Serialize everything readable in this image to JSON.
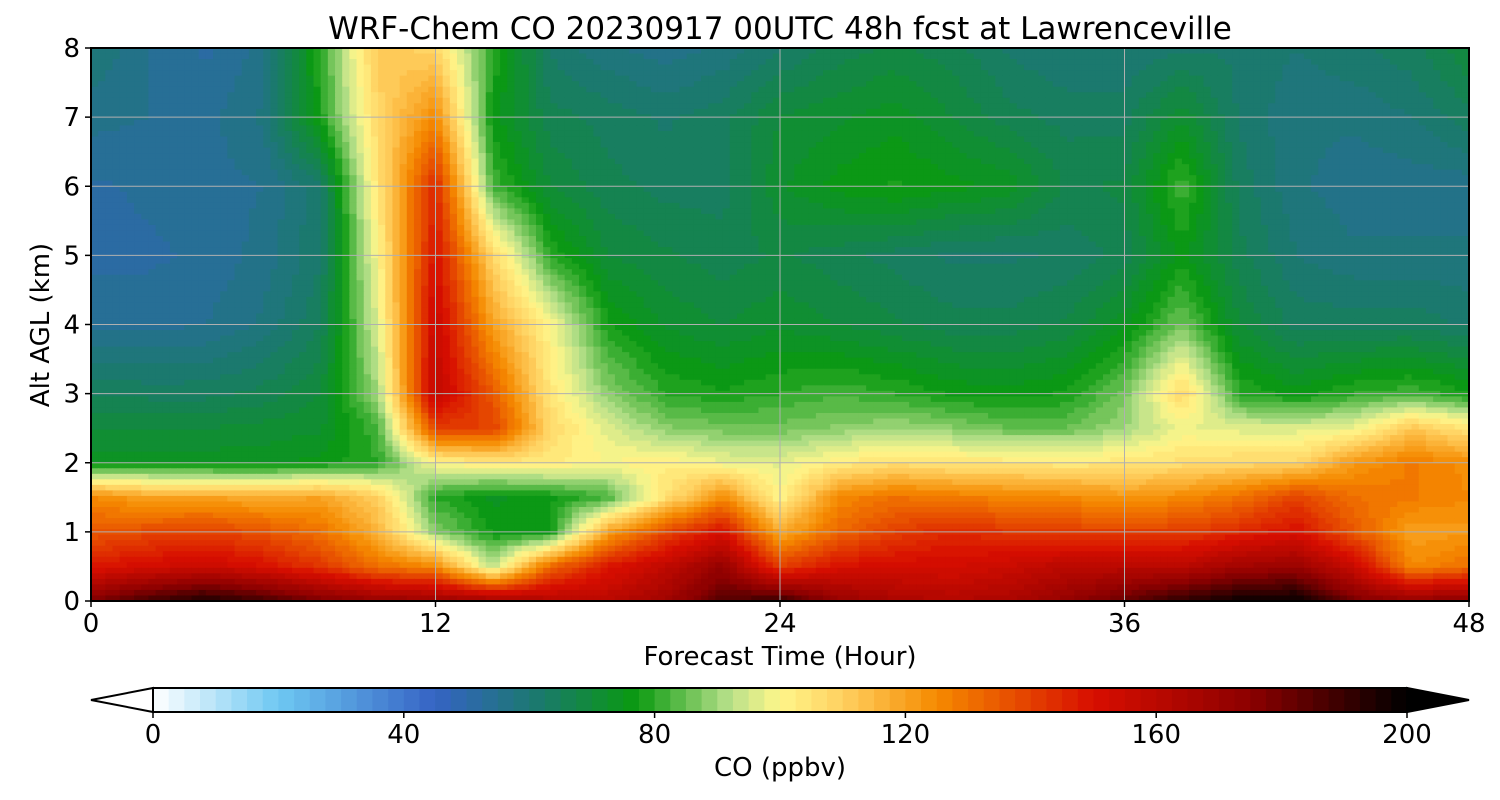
{
  "chart_data": {
    "type": "heatmap",
    "title": "WRF-Chem CO  20230917 00UTC 48h fcst at Lawrenceville",
    "xlabel": "Forecast Time (Hour)",
    "ylabel": "Alt AGL (km)",
    "xlim": [
      0,
      48
    ],
    "ylim": [
      0,
      8
    ],
    "x_ticks": [
      "0",
      "12",
      "24",
      "36",
      "48"
    ],
    "y_ticks": [
      "0",
      "1",
      "2",
      "3",
      "4",
      "5",
      "6",
      "7",
      "8"
    ],
    "grid": true,
    "colorbar": {
      "label": "CO  (ppbv)",
      "range": [
        0,
        200
      ],
      "ticks": [
        "0",
        "40",
        "80",
        "120",
        "160",
        "200"
      ],
      "extend": "both",
      "placement": "bottom",
      "stops": [
        {
          "value": 0,
          "color": "#ffffff"
        },
        {
          "value": 20,
          "color": "#6ec8f2"
        },
        {
          "value": 45,
          "color": "#3563c4"
        },
        {
          "value": 62,
          "color": "#1a7a6a"
        },
        {
          "value": 77,
          "color": "#0a9a10"
        },
        {
          "value": 92,
          "color": "#b8e08a"
        },
        {
          "value": 100,
          "color": "#fff68a"
        },
        {
          "value": 110,
          "color": "#ffd060"
        },
        {
          "value": 125,
          "color": "#f58a00"
        },
        {
          "value": 150,
          "color": "#d80e00"
        },
        {
          "value": 175,
          "color": "#8c0000"
        },
        {
          "value": 200,
          "color": "#000000"
        }
      ]
    },
    "hours": [
      0,
      2,
      4,
      6,
      8,
      10,
      12,
      14,
      16,
      18,
      20,
      22,
      24,
      26,
      28,
      30,
      32,
      34,
      36,
      38,
      40,
      42,
      44,
      46,
      48
    ],
    "altitudes_km": [
      0,
      0.5,
      1,
      1.5,
      2,
      2.5,
      3,
      4,
      5,
      6,
      7,
      8
    ],
    "values_ppbv": [
      [
        178,
        188,
        195,
        188,
        178,
        172,
        170,
        168,
        162,
        160,
        168,
        185,
        190,
        172,
        165,
        162,
        165,
        172,
        182,
        192,
        198,
        200,
        178,
        172,
        176
      ],
      [
        148,
        152,
        155,
        150,
        142,
        130,
        125,
        92,
        132,
        148,
        158,
        172,
        140,
        150,
        152,
        152,
        155,
        160,
        160,
        160,
        168,
        170,
        155,
        125,
        130
      ],
      [
        135,
        138,
        140,
        136,
        130,
        116,
        88,
        77,
        77,
        120,
        138,
        150,
        118,
        132,
        140,
        145,
        142,
        140,
        140,
        140,
        145,
        150,
        135,
        120,
        122
      ],
      [
        125,
        120,
        120,
        118,
        120,
        110,
        80,
        74,
        77,
        82,
        105,
        125,
        100,
        125,
        130,
        128,
        126,
        125,
        122,
        125,
        130,
        140,
        130,
        128,
        125
      ],
      [
        74,
        74,
        74,
        74,
        76,
        80,
        100,
        104,
        103,
        100,
        102,
        98,
        97,
        102,
        106,
        104,
        104,
        103,
        104,
        106,
        108,
        108,
        122,
        128,
        124
      ],
      [
        70,
        70,
        70,
        71,
        72,
        82,
        140,
        140,
        108,
        96,
        88,
        86,
        86,
        88,
        90,
        88,
        85,
        85,
        90,
        98,
        96,
        96,
        98,
        112,
        104
      ],
      [
        65,
        64,
        64,
        66,
        70,
        90,
        158,
        135,
        104,
        88,
        80,
        78,
        80,
        82,
        80,
        77,
        76,
        78,
        86,
        108,
        80,
        76,
        80,
        82,
        78
      ],
      [
        54,
        54,
        55,
        58,
        65,
        96,
        156,
        120,
        100,
        78,
        72,
        70,
        72,
        70,
        68,
        66,
        66,
        68,
        74,
        86,
        70,
        64,
        64,
        64,
        62
      ],
      [
        52,
        52,
        53,
        56,
        62,
        100,
        150,
        108,
        80,
        70,
        68,
        66,
        68,
        66,
        64,
        62,
        62,
        63,
        66,
        76,
        66,
        60,
        58,
        58,
        58
      ],
      [
        52,
        53,
        54,
        55,
        62,
        105,
        145,
        82,
        70,
        66,
        64,
        64,
        72,
        76,
        78,
        76,
        74,
        67,
        68,
        82,
        64,
        58,
        56,
        56,
        56
      ],
      [
        56,
        55,
        54,
        58,
        78,
        108,
        125,
        76,
        66,
        64,
        62,
        64,
        70,
        72,
        74,
        70,
        66,
        64,
        64,
        72,
        62,
        58,
        58,
        60,
        64
      ],
      [
        60,
        55,
        52,
        56,
        80,
        112,
        108,
        80,
        62,
        58,
        56,
        58,
        62,
        66,
        68,
        66,
        62,
        60,
        60,
        62,
        62,
        60,
        62,
        64,
        70
      ]
    ]
  }
}
